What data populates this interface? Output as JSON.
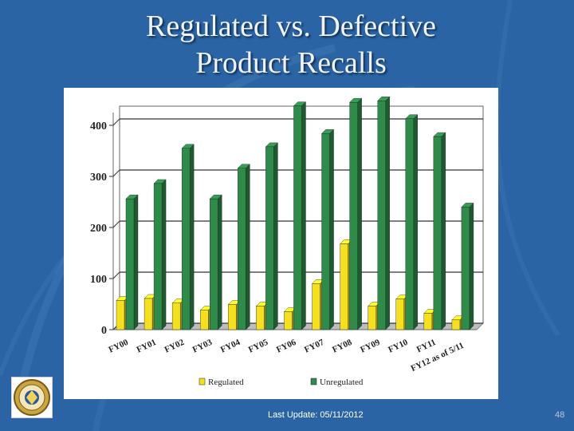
{
  "slide": {
    "title_line1": "Regulated vs. Defective",
    "title_line2": "Product Recalls",
    "footer_update": "Last Update: 05/11/2012",
    "slide_number": "48"
  },
  "colors": {
    "background": "#2a64a4",
    "regulated": "#f5e020",
    "unregulated": "#2e8b4a"
  },
  "icons": {
    "logo": "seal-logo"
  },
  "chart_data": {
    "type": "bar",
    "title": "",
    "xlabel": "",
    "ylabel": "",
    "ylim": [
      0,
      400
    ],
    "yticks": [
      0,
      100,
      200,
      300,
      400
    ],
    "grid": true,
    "legend_position": "bottom",
    "categories": [
      "FY00",
      "FY01",
      "FY02",
      "FY03",
      "FY04",
      "FY05",
      "FY06",
      "FY07",
      "FY08",
      "FY09",
      "FY10",
      "FY11",
      "FY12 as of 5/11"
    ],
    "series": [
      {
        "name": "Regulated",
        "values": [
          57,
          61,
          52,
          38,
          49,
          46,
          35,
          90,
          168,
          46,
          60,
          32,
          19
        ]
      },
      {
        "name": "Unregulated",
        "values": [
          256,
          286,
          355,
          256,
          316,
          358,
          438,
          384,
          445,
          448,
          413,
          378,
          240
        ]
      }
    ]
  }
}
